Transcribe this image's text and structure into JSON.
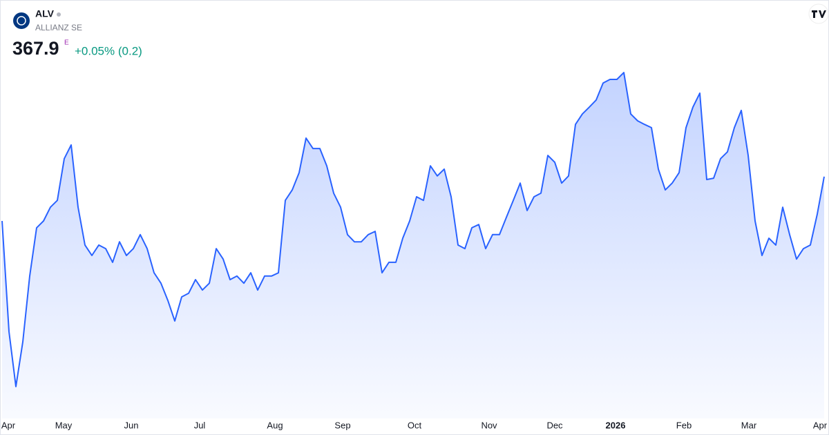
{
  "header": {
    "symbol": "ALV",
    "name": "ALLIANZ SE",
    "price": "367.9",
    "price_flag": "E",
    "change": "+0.05% (0.2)"
  },
  "chart_data": {
    "type": "line",
    "series": [
      {
        "name": "ALV",
        "color": "#2962ff",
        "values": [
          354.3,
          320.4,
          303.5,
          317.2,
          337.4,
          352.2,
          354.3,
          358.5,
          360.6,
          373.4,
          377.6,
          358.5,
          346.9,
          343.7,
          346.9,
          345.8,
          341.6,
          347.9,
          343.7,
          345.8,
          350.1,
          345.8,
          338.4,
          335.2,
          329.9,
          323.6,
          331.0,
          332.1,
          336.3,
          333.1,
          335.2,
          345.8,
          342.6,
          336.3,
          337.4,
          335.2,
          338.4,
          333.1,
          337.4,
          337.4,
          338.4,
          360.6,
          363.8,
          369.1,
          379.7,
          376.5,
          376.5,
          371.2,
          362.8,
          358.5,
          350.1,
          347.9,
          347.9,
          350.1,
          351.1,
          338.4,
          341.6,
          341.6,
          349.0,
          354.3,
          361.7,
          360.6,
          371.2,
          368.1,
          370.2,
          361.7,
          346.9,
          345.8,
          352.2,
          353.2,
          345.8,
          350.1,
          350.1,
          355.4,
          360.6,
          365.9,
          357.5,
          361.7,
          362.8,
          374.4,
          372.3,
          365.9,
          368.1,
          383.9,
          387.1,
          389.2,
          391.4,
          396.6,
          397.7,
          397.7,
          399.8,
          387.1,
          385.0,
          383.9,
          382.9,
          370.2,
          363.8,
          365.9,
          369.1,
          382.9,
          389.2,
          393.5,
          367.0,
          367.4,
          373.4,
          375.5,
          382.9,
          388.2,
          374.4,
          354.3,
          343.7,
          349.0,
          346.9,
          358.5,
          350.1,
          342.6,
          345.8,
          346.9,
          356.4,
          367.9
        ]
      }
    ],
    "xlim": [
      0,
      119
    ],
    "xticks": [
      {
        "value": 0.8,
        "label": "Apr"
      },
      {
        "value": 8.9,
        "label": "May"
      },
      {
        "value": 18.7,
        "label": "Jun"
      },
      {
        "value": 28.6,
        "label": "Jul"
      },
      {
        "value": 39.5,
        "label": "Aug"
      },
      {
        "value": 49.3,
        "label": "Sep"
      },
      {
        "value": 59.7,
        "label": "Oct"
      },
      {
        "value": 70.5,
        "label": "Nov"
      },
      {
        "value": 80,
        "label": "Dec"
      },
      {
        "value": 88.8,
        "label": "2026"
      },
      {
        "value": 98.7,
        "label": "Feb"
      },
      {
        "value": 108.1,
        "label": "Mar"
      },
      {
        "value": 118.5,
        "label": "Apr"
      }
    ],
    "ylim": [
      295,
      403
    ]
  }
}
